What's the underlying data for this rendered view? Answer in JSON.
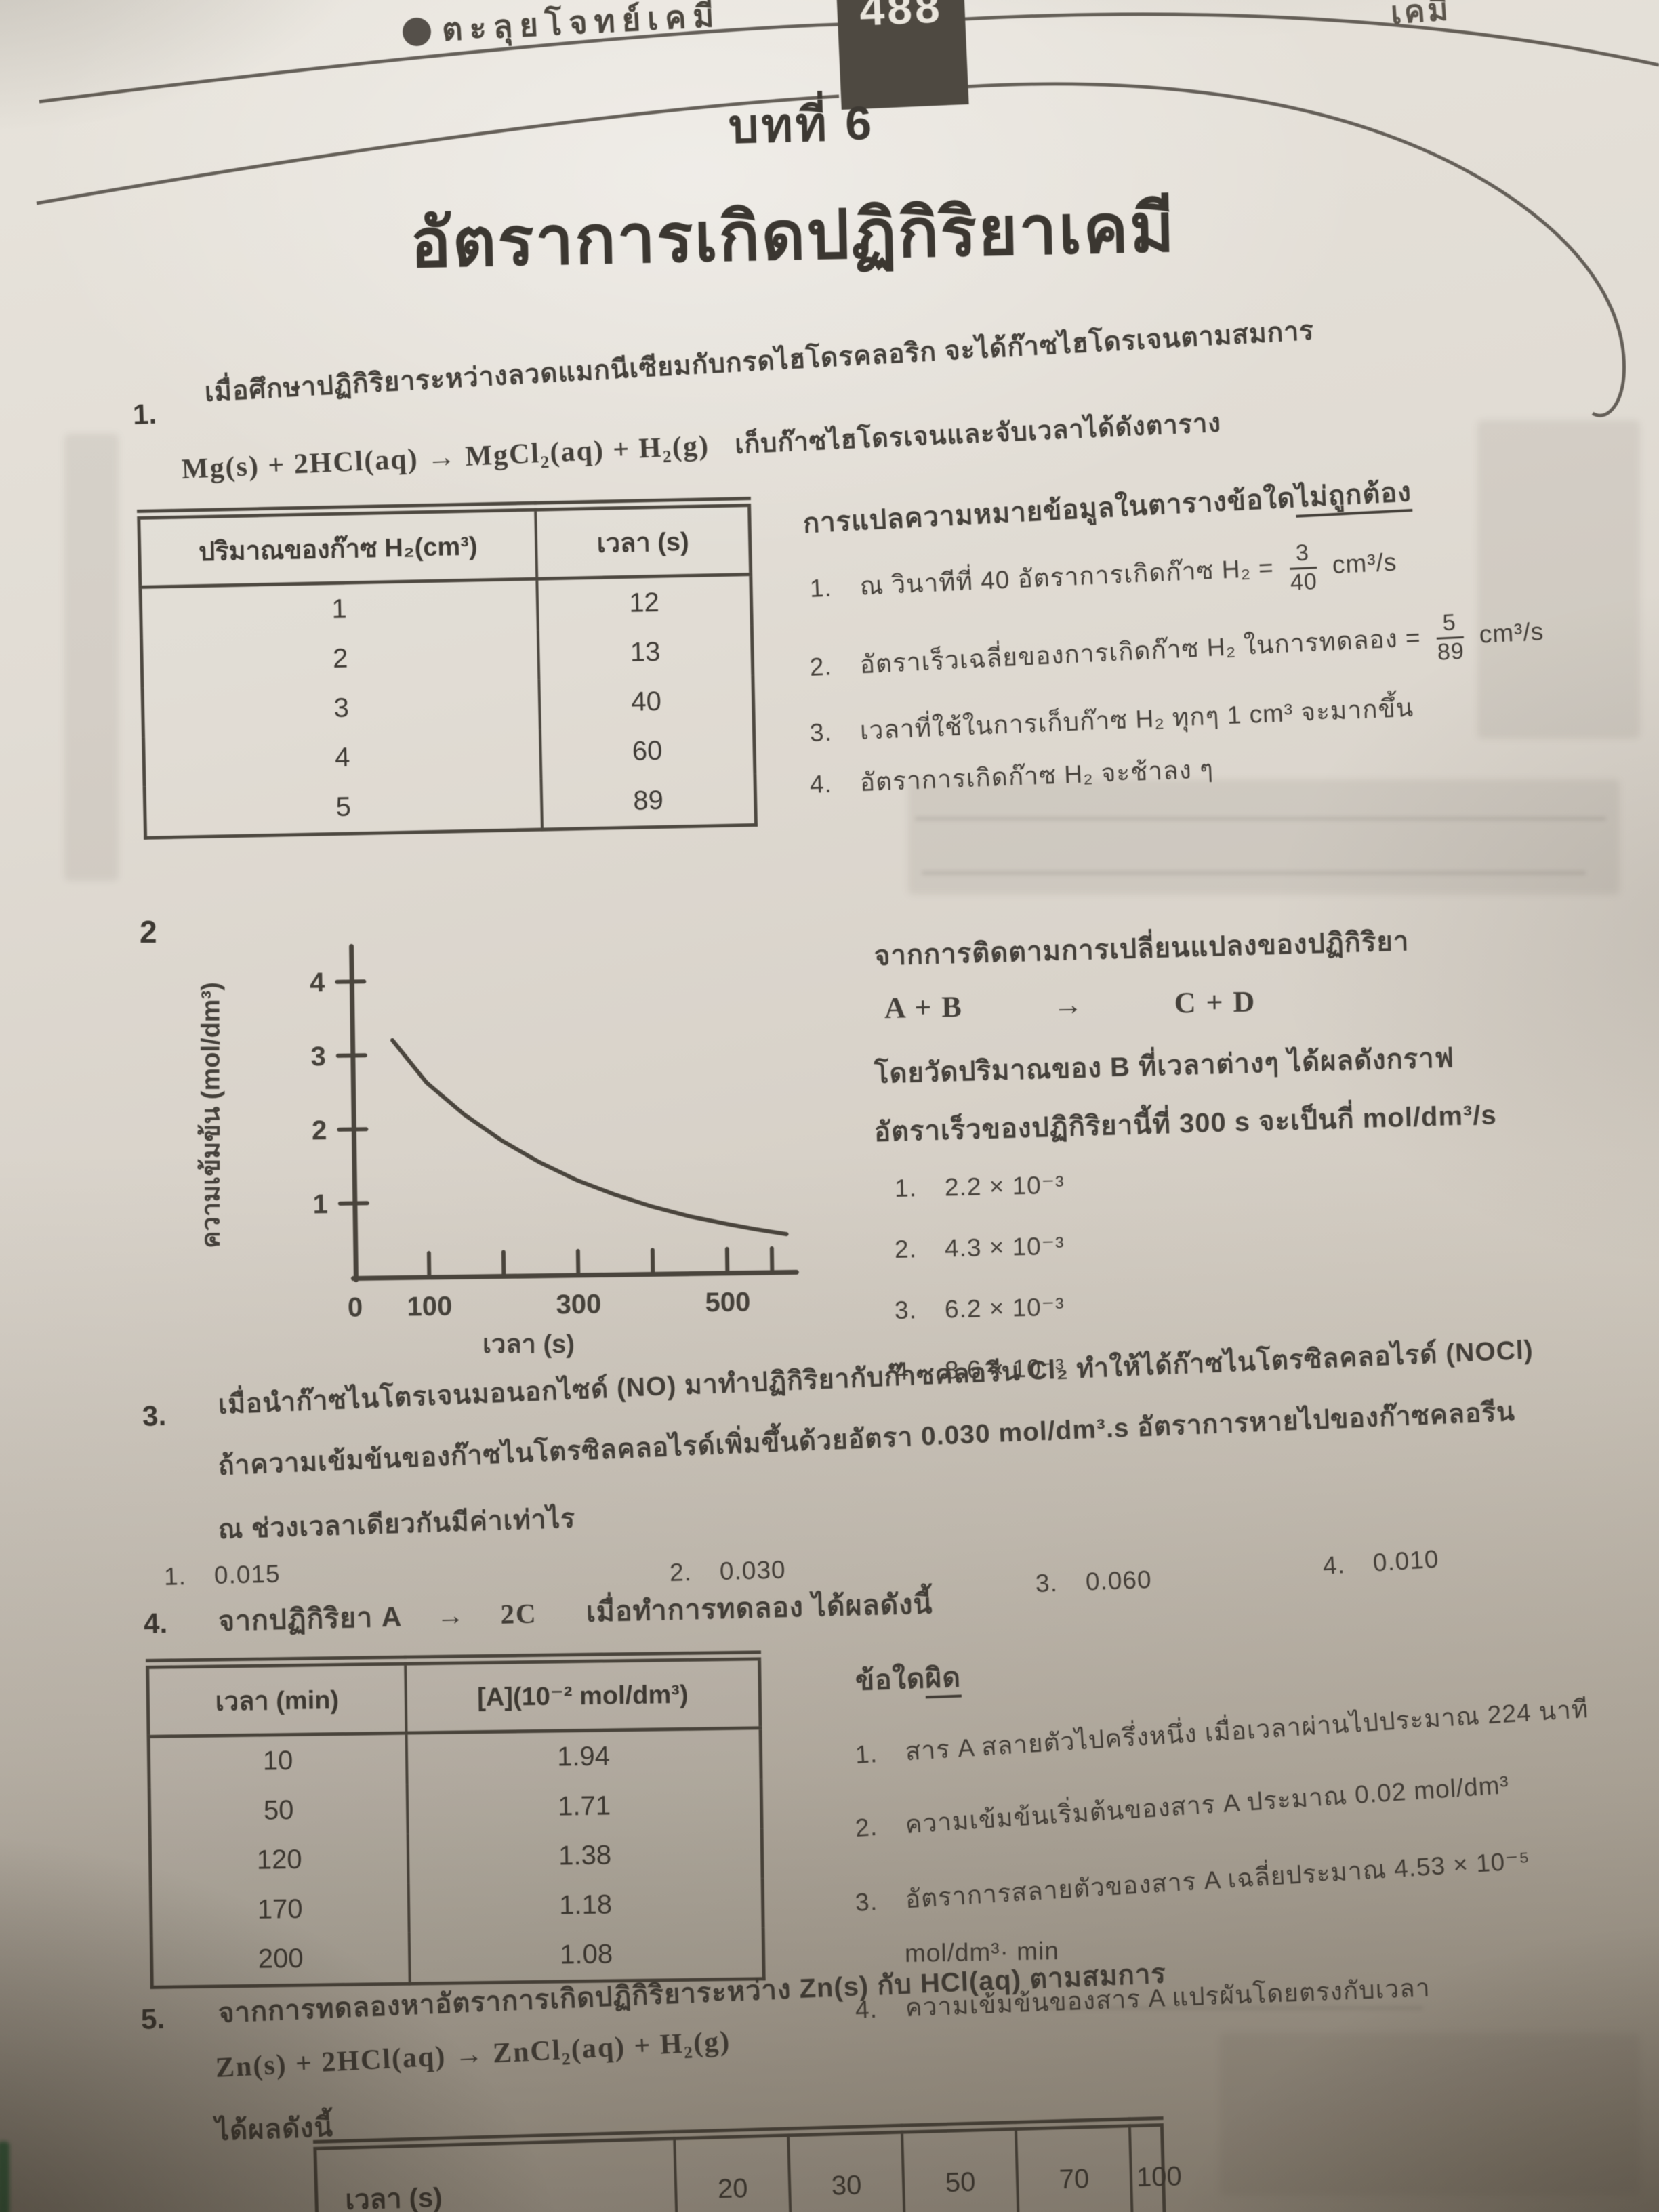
{
  "header": {
    "book_title": "ตะลุยโจทย์เคมี",
    "page_badge": "488",
    "right_title_partial": "เคมี"
  },
  "chapter": {
    "label": "บทที่ 6",
    "title": "อัตราการเกิดปฏิกิริยาเคมี"
  },
  "q1": {
    "number": "1.",
    "line1": "เมื่อศึกษาปฏิกิริยาระหว่างลวดแมกนีเซียมกับกรดไฮโดรคลอริก จะได้ก๊าซไฮโดรเจนตามสมการ",
    "equation": "Mg(s) + 2HCl(aq)  →  MgCl₂(aq) + H₂(g)",
    "line2_suffix": "เก็บก๊าซไฮโดรเจนและจับเวลาได้ดังตาราง",
    "table": {
      "col1_header": "ปริมาณของก๊าซ H₂(cm³)",
      "col2_header": "เวลา (s)",
      "rows": [
        [
          "1",
          "12"
        ],
        [
          "2",
          "13"
        ],
        [
          "3",
          "40"
        ],
        [
          "4",
          "60"
        ],
        [
          "5",
          "89"
        ]
      ]
    },
    "question_prefix": "การแปลความหมายข้อมูลในตารางข้อใด",
    "question_underlined": "ไม่ถูกต้อง",
    "choices": {
      "c1": {
        "n": "1.",
        "pre": "ณ วินาทีที่ 40 อัตราการเกิดก๊าซ H₂ =",
        "frac_num": "3",
        "frac_den": "40",
        "post": "cm³/s"
      },
      "c2": {
        "n": "2.",
        "pre": "อัตราเร็วเฉลี่ยของการเกิดก๊าซ H₂ ในการทดลอง =",
        "frac_num": "5",
        "frac_den": "89",
        "post": "cm³/s"
      },
      "c3": {
        "n": "3.",
        "text": "เวลาที่ใช้ในการเก็บก๊าซ H₂ ทุกๆ 1 cm³ จะมากขึ้น"
      },
      "c4": {
        "n": "4.",
        "text": "อัตราการเกิดก๊าซ H₂ จะช้าลง ๆ"
      }
    }
  },
  "q2": {
    "number": "2",
    "chart_data": {
      "type": "line",
      "title": "",
      "xlabel": "เวลา (s)",
      "ylabel": "ความเข้มข้น (mol/dm³)",
      "xlim": [
        0,
        600
      ],
      "ylim": [
        0,
        4.5
      ],
      "x_tick_marks": [
        100,
        200,
        300,
        400,
        500,
        560
      ],
      "x_tick_labels": [
        "0",
        "100",
        "300",
        "500"
      ],
      "x_label_values": [
        0,
        100,
        300,
        500
      ],
      "y_ticks": [
        1,
        2,
        3,
        4
      ],
      "points": [
        [
          55,
          3.2
        ],
        [
          100,
          2.62
        ],
        [
          150,
          2.18
        ],
        [
          200,
          1.82
        ],
        [
          250,
          1.52
        ],
        [
          300,
          1.27
        ],
        [
          350,
          1.07
        ],
        [
          400,
          0.9
        ],
        [
          450,
          0.76
        ],
        [
          500,
          0.65
        ],
        [
          540,
          0.57
        ],
        [
          580,
          0.5
        ]
      ]
    },
    "line1": "จากการติดตามการเปลี่ยนแปลงของปฏิกิริยา",
    "eq_left": "A + B",
    "eq_arrow": "→",
    "eq_right": "C + D",
    "line2": "โดยวัดปริมาณของ B ที่เวลาต่างๆ ได้ผลดังกราฟ",
    "line3": "อัตราเร็วของปฏิกิริยานี้ที่ 300 s จะเป็นกี่ mol/dm³/s",
    "choices": {
      "c1": {
        "n": "1.",
        "text": "2.2 × 10⁻³"
      },
      "c2": {
        "n": "2.",
        "text": "4.3 × 10⁻³"
      },
      "c3": {
        "n": "3.",
        "text": "6.2 × 10⁻³"
      },
      "c4": {
        "n": "4.",
        "text": "8.6 × 10⁻³"
      }
    }
  },
  "q3": {
    "number": "3.",
    "line1": "เมื่อนำก๊าซไนโตรเจนมอนอกไซด์ (NO) มาทำปฏิกิริยากับก๊าซคลอรีน Cl₂ ทำให้ได้ก๊าซไนโตรซิลคลอไรด์ (NOCl)",
    "line2": "ถ้าความเข้มข้นของก๊าซไนโตรซิลคลอไรด์เพิ่มขึ้นด้วยอัตรา 0.030 mol/dm³.s อัตราการหายไปของก๊าซคลอรีน",
    "line3": "ณ ช่วงเวลาเดียวกันมีค่าเท่าไร",
    "choices": {
      "c1": {
        "n": "1.",
        "text": "0.015"
      },
      "c2": {
        "n": "2.",
        "text": "0.030"
      },
      "c3": {
        "n": "3.",
        "text": "0.060"
      },
      "c4": {
        "n": "4.",
        "text": "0.010"
      }
    }
  },
  "q4": {
    "number": "4.",
    "prompt_p1": "จากปฏิกิริยา A",
    "prompt_arrow": "→",
    "prompt_p2": "2C",
    "prompt_p3": "เมื่อทำการทดลอง ได้ผลดังนี้",
    "table": {
      "col1_header": "เวลา (min)",
      "col2_header": "[A](10⁻² mol/dm³)",
      "rows": [
        [
          "10",
          "1.94"
        ],
        [
          "50",
          "1.71"
        ],
        [
          "120",
          "1.38"
        ],
        [
          "170",
          "1.18"
        ],
        [
          "200",
          "1.08"
        ]
      ]
    },
    "question_prefix": "ข้อใด",
    "question_underlined": "ผิด",
    "choices": {
      "c1": {
        "n": "1.",
        "text": "สาร A สลายตัวไปครึ่งหนึ่ง เมื่อเวลาผ่านไปประมาณ 224 นาที"
      },
      "c2": {
        "n": "2.",
        "text": "ความเข้มข้นเริ่มต้นของสาร A ประมาณ 0.02 mol/dm³"
      },
      "c3": {
        "n": "3.",
        "text": "อัตราการสลายตัวของสาร A เฉลี่ยประมาณ 4.53 × 10⁻⁵"
      },
      "c3_cont": "mol/dm³· min",
      "c4": {
        "n": "4.",
        "text": "ความเข้มข้นของสาร A แปรผันโดยตรงกับเวลา"
      }
    }
  },
  "q5": {
    "number": "5.",
    "line1": "จากการทดลองหาอัตราการเกิดปฏิกิริยาระหว่าง Zn(s) กับ HCl(aq) ตามสมการ",
    "equation": "Zn(s) + 2HCl(aq)  →  ZnCl₂(aq) + H₂(g)",
    "note": "ได้ผลดังนี้",
    "table": {
      "header": "เวลา (s)",
      "values": [
        "20",
        "30",
        "50",
        "70",
        "100"
      ]
    }
  }
}
